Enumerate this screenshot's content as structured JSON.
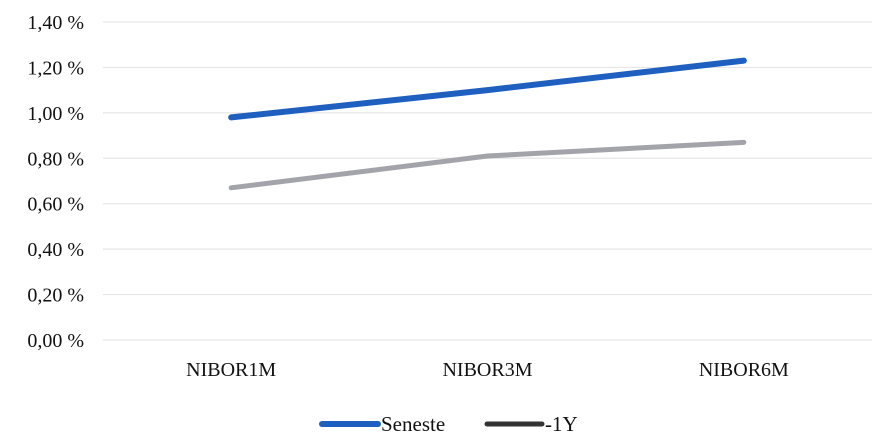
{
  "chart_data": {
    "type": "line",
    "categories": [
      "NIBOR1M",
      "NIBOR3M",
      "NIBOR6M"
    ],
    "series": [
      {
        "name": "Seneste",
        "values": [
          0.98,
          1.1,
          1.23
        ],
        "color": "#1f5fbf"
      },
      {
        "name": "-1Y",
        "values": [
          0.67,
          0.81,
          0.87
        ],
        "color": "#a3a3aa",
        "legend_color": "#333333"
      }
    ],
    "ylim": [
      0,
      1.4
    ],
    "yticks": [
      0,
      0.2,
      0.4,
      0.6,
      0.8,
      1.0,
      1.2,
      1.4
    ],
    "ytick_labels": [
      "0,00 %",
      "0,20 %",
      "0,40 %",
      "0,60 %",
      "0,80 %",
      "1,00 %",
      "1,20 %",
      "1,40 %"
    ],
    "grid": true,
    "grid_color": "#e6e6e6",
    "legend_position": "bottom-center",
    "title": "",
    "xlabel": "",
    "ylabel": ""
  }
}
